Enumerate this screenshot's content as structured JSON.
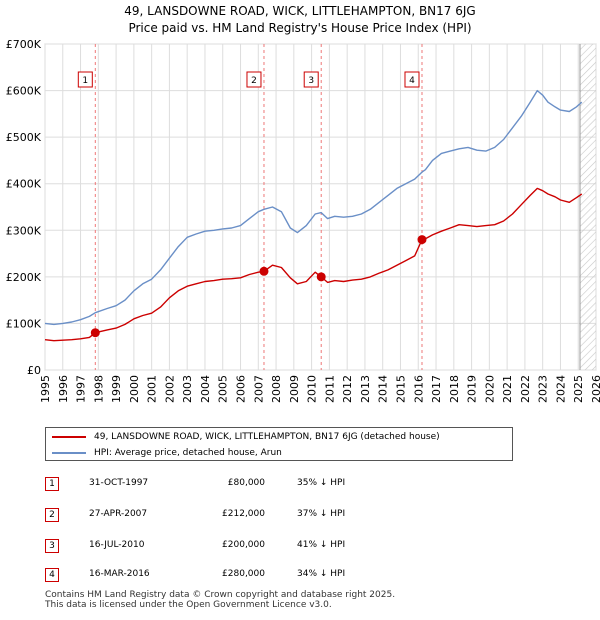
{
  "header": {
    "title_line1": "49, LANSDOWNE ROAD, WICK, LITTLEHAMPTON, BN17 6JG",
    "title_line2": "Price paid vs. HM Land Registry's House Price Index (HPI)"
  },
  "colors": {
    "property": "#cc0000",
    "hpi": "#6a8fc7",
    "grid": "#dddddd",
    "plot_bg": "#ffffff",
    "marker_line": "#ee7777"
  },
  "chart_data": {
    "type": "line",
    "title": "Price paid vs. HM Land Registry's House Price Index (HPI)",
    "xlabel": "",
    "ylabel": "",
    "xlim": [
      1995,
      2026
    ],
    "ylim": [
      0,
      700000
    ],
    "y_ticks": [
      0,
      100000,
      200000,
      300000,
      400000,
      500000,
      600000,
      700000
    ],
    "y_tick_labels": [
      "£0",
      "£100K",
      "£200K",
      "£300K",
      "£400K",
      "£500K",
      "£600K",
      "£700K"
    ],
    "x_ticks": [
      1995,
      1996,
      1997,
      1998,
      1999,
      2000,
      2001,
      2002,
      2003,
      2004,
      2005,
      2006,
      2007,
      2008,
      2009,
      2010,
      2011,
      2012,
      2013,
      2014,
      2015,
      2016,
      2017,
      2018,
      2019,
      2020,
      2021,
      2022,
      2023,
      2024,
      2025,
      2026
    ],
    "x_tick_labels": [
      "1995",
      "1996",
      "1997",
      "1998",
      "1999",
      "2000",
      "2001",
      "2002",
      "2003",
      "2004",
      "2005",
      "2006",
      "2007",
      "2008",
      "2009",
      "2010",
      "2011",
      "2012",
      "2013",
      "2014",
      "2015",
      "2016",
      "2017",
      "2018",
      "2019",
      "2020",
      "2021",
      "2022",
      "2023",
      "2024",
      "2025",
      "2026"
    ],
    "forecast_from": 2025.1,
    "series": [
      {
        "name": "49, LANSDOWNE ROAD, WICK, LITTLEHAMPTON, BN17 6JG (detached house)",
        "color": "#cc0000",
        "x": [
          1995.0,
          1995.5,
          1996.0,
          1996.5,
          1997.0,
          1997.5,
          1997.83,
          1998.5,
          1999.0,
          1999.5,
          2000.0,
          2000.5,
          2001.0,
          2001.5,
          2002.0,
          2002.5,
          2003.0,
          2003.5,
          2004.0,
          2004.5,
          2005.0,
          2005.5,
          2006.0,
          2006.5,
          2007.0,
          2007.32,
          2007.8,
          2008.3,
          2008.8,
          2009.2,
          2009.7,
          2010.2,
          2010.54,
          2010.9,
          2011.3,
          2011.8,
          2012.3,
          2012.8,
          2013.3,
          2013.8,
          2014.3,
          2014.8,
          2015.3,
          2015.8,
          2016.21,
          2016.4,
          2016.8,
          2017.3,
          2017.8,
          2018.3,
          2018.8,
          2019.3,
          2019.8,
          2020.3,
          2020.8,
          2021.3,
          2021.8,
          2022.3,
          2022.7,
          2023.0,
          2023.3,
          2023.7,
          2024.0,
          2024.5,
          2024.9,
          2025.2
        ],
        "y": [
          65000,
          63000,
          64000,
          65000,
          67000,
          70000,
          80000,
          86000,
          90000,
          98000,
          110000,
          117000,
          122000,
          135000,
          155000,
          170000,
          180000,
          185000,
          190000,
          192000,
          195000,
          196000,
          198000,
          205000,
          210000,
          212000,
          225000,
          220000,
          198000,
          185000,
          190000,
          210000,
          200000,
          188000,
          192000,
          190000,
          193000,
          195000,
          200000,
          208000,
          215000,
          225000,
          235000,
          245000,
          280000,
          282000,
          290000,
          298000,
          305000,
          312000,
          310000,
          308000,
          310000,
          312000,
          320000,
          335000,
          355000,
          375000,
          390000,
          385000,
          378000,
          372000,
          365000,
          360000,
          370000,
          378000
        ]
      },
      {
        "name": "HPI: Average price, detached house, Arun",
        "color": "#6a8fc7",
        "x": [
          1995.0,
          1995.5,
          1996.0,
          1996.5,
          1997.0,
          1997.5,
          1997.83,
          1998.5,
          1999.0,
          1999.5,
          2000.0,
          2000.5,
          2001.0,
          2001.5,
          2002.0,
          2002.5,
          2003.0,
          2003.5,
          2004.0,
          2004.5,
          2005.0,
          2005.5,
          2006.0,
          2006.5,
          2007.0,
          2007.32,
          2007.8,
          2008.3,
          2008.8,
          2009.2,
          2009.7,
          2010.2,
          2010.54,
          2010.9,
          2011.3,
          2011.8,
          2012.3,
          2012.8,
          2013.3,
          2013.8,
          2014.3,
          2014.8,
          2015.3,
          2015.8,
          2016.21,
          2016.4,
          2016.8,
          2017.3,
          2017.8,
          2018.3,
          2018.8,
          2019.3,
          2019.8,
          2020.3,
          2020.8,
          2021.3,
          2021.8,
          2022.3,
          2022.7,
          2023.0,
          2023.3,
          2023.7,
          2024.0,
          2024.5,
          2024.9,
          2025.2
        ],
        "y": [
          100000,
          98000,
          100000,
          103000,
          108000,
          115000,
          123000,
          132000,
          138000,
          150000,
          170000,
          185000,
          195000,
          215000,
          240000,
          265000,
          285000,
          292000,
          298000,
          300000,
          303000,
          305000,
          310000,
          325000,
          340000,
          345000,
          350000,
          340000,
          305000,
          295000,
          310000,
          335000,
          338000,
          325000,
          330000,
          328000,
          330000,
          335000,
          345000,
          360000,
          375000,
          390000,
          400000,
          410000,
          425000,
          430000,
          450000,
          465000,
          470000,
          475000,
          478000,
          472000,
          470000,
          478000,
          495000,
          520000,
          545000,
          575000,
          600000,
          590000,
          575000,
          565000,
          558000,
          555000,
          565000,
          575000
        ]
      }
    ],
    "sales": [
      {
        "num": "1",
        "x": 1997.83,
        "y": 80000,
        "date": "31-OCT-1997",
        "price": "£80,000",
        "hpi": "35% ↓ HPI"
      },
      {
        "num": "2",
        "x": 2007.32,
        "y": 212000,
        "date": "27-APR-2007",
        "price": "£212,000",
        "hpi": "37% ↓ HPI"
      },
      {
        "num": "3",
        "x": 2010.54,
        "y": 200000,
        "date": "16-JUL-2010",
        "price": "£200,000",
        "hpi": "41% ↓ HPI"
      },
      {
        "num": "4",
        "x": 2016.21,
        "y": 280000,
        "date": "16-MAR-2016",
        "price": "£280,000",
        "hpi": "34% ↓ HPI"
      }
    ]
  },
  "legend": {
    "property_label": "49, LANSDOWNE ROAD, WICK, LITTLEHAMPTON, BN17 6JG (detached house)",
    "hpi_label": "HPI: Average price, detached house, Arun"
  },
  "footer": {
    "line1": "Contains HM Land Registry data © Crown copyright and database right 2025.",
    "line2": "This data is licensed under the Open Government Licence v3.0."
  }
}
